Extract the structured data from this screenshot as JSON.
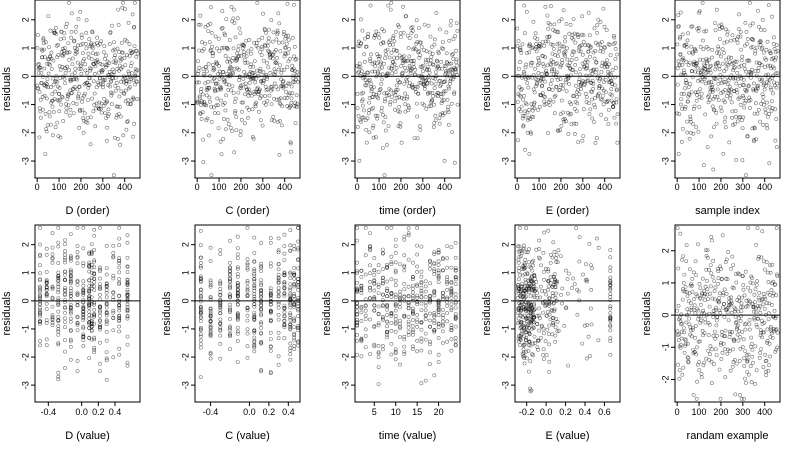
{
  "chart_data": [
    {
      "type": "scatter",
      "xlabel": "D (order)",
      "ylabel": "residuals",
      "xlim": [
        -10,
        470
      ],
      "ylim": [
        -3.6,
        2.7
      ],
      "xticks": [
        0,
        100,
        200,
        300,
        400
      ],
      "xticklabels": [
        "0",
        "100",
        "200",
        "300",
        "400"
      ],
      "yticks": [
        -3,
        -2,
        -1,
        0,
        1,
        2
      ],
      "yticklabels": [
        "-3",
        "-2",
        "-1",
        "0",
        "1",
        "2"
      ],
      "n": 460,
      "x_kind": "index",
      "reference_line": 0,
      "grid": false
    },
    {
      "type": "scatter",
      "xlabel": "C (order)",
      "ylabel": "residuals",
      "xlim": [
        -10,
        470
      ],
      "ylim": [
        -3.6,
        2.7
      ],
      "xticks": [
        0,
        100,
        200,
        300,
        400
      ],
      "xticklabels": [
        "0",
        "100",
        "200",
        "300",
        "400"
      ],
      "yticks": [
        -3,
        -2,
        -1,
        0,
        1,
        2
      ],
      "yticklabels": [
        "-3",
        "-2",
        "-1",
        "0",
        "1",
        "2"
      ],
      "n": 460,
      "x_kind": "index",
      "reference_line": 0,
      "grid": false
    },
    {
      "type": "scatter",
      "xlabel": "time (order)",
      "ylabel": "residuals",
      "xlim": [
        -10,
        470
      ],
      "ylim": [
        -3.6,
        2.7
      ],
      "xticks": [
        0,
        100,
        200,
        300,
        400
      ],
      "xticklabels": [
        "0",
        "100",
        "200",
        "300",
        "400"
      ],
      "yticks": [
        -3,
        -2,
        -1,
        0,
        1,
        2
      ],
      "yticklabels": [
        "-3",
        "-2",
        "-1",
        "0",
        "1",
        "2"
      ],
      "n": 460,
      "x_kind": "index",
      "reference_line": 0,
      "grid": false
    },
    {
      "type": "scatter",
      "xlabel": "E (order)",
      "ylabel": "residuals",
      "xlim": [
        -10,
        470
      ],
      "ylim": [
        -3.6,
        2.7
      ],
      "xticks": [
        0,
        100,
        200,
        300,
        400
      ],
      "xticklabels": [
        "0",
        "100",
        "200",
        "300",
        "400"
      ],
      "yticks": [
        -3,
        -2,
        -1,
        0,
        1,
        2
      ],
      "yticklabels": [
        "-3",
        "-2",
        "-1",
        "0",
        "1",
        "2"
      ],
      "n": 460,
      "x_kind": "index",
      "reference_line": 0,
      "grid": false
    },
    {
      "type": "scatter",
      "xlabel": "sample index",
      "ylabel": "residuals",
      "xlim": [
        -10,
        470
      ],
      "ylim": [
        -3.6,
        2.7
      ],
      "xticks": [
        0,
        100,
        200,
        300,
        400
      ],
      "xticklabels": [
        "0",
        "100",
        "200",
        "300",
        "400"
      ],
      "yticks": [
        -3,
        -2,
        -1,
        0,
        1,
        2
      ],
      "yticklabels": [
        "-3",
        "-2",
        "-1",
        "0",
        "1",
        "2"
      ],
      "n": 460,
      "x_kind": "index",
      "reference_line": 0,
      "grid": false
    },
    {
      "type": "scatter",
      "xlabel": "D (value)",
      "ylabel": "residuals",
      "xlim": [
        -0.56,
        0.7
      ],
      "ylim": [
        -3.6,
        2.7
      ],
      "xticks": [
        -0.4,
        0.0,
        0.2,
        0.4
      ],
      "xticklabels": [
        "-0.4",
        "0.0",
        "0.2",
        "0.4"
      ],
      "yticks": [
        -3,
        -2,
        -1,
        0,
        1,
        2
      ],
      "yticklabels": [
        "-3",
        "-2",
        "-1",
        "0",
        "1",
        "2"
      ],
      "n": 460,
      "x_kind": "discrete",
      "x_levels": [
        -0.5,
        -0.42,
        -0.35,
        -0.28,
        -0.2,
        -0.13,
        -0.05,
        0.02,
        0.09,
        0.12,
        0.15,
        0.22,
        0.3,
        0.38,
        0.45,
        0.55
      ],
      "reference_line": 0,
      "grid": false
    },
    {
      "type": "scatter",
      "xlabel": "C (value)",
      "ylabel": "residuals",
      "xlim": [
        -0.56,
        0.52
      ],
      "ylim": [
        -3.6,
        2.7
      ],
      "xticks": [
        -0.4,
        0.0,
        0.2,
        0.4
      ],
      "xticklabels": [
        "-0.4",
        "0.0",
        "0.2",
        "0.4"
      ],
      "yticks": [
        -3,
        -2,
        -1,
        0,
        1,
        2
      ],
      "yticklabels": [
        "-3",
        "-2",
        "-1",
        "0",
        "1",
        "2"
      ],
      "n": 460,
      "x_kind": "discrete",
      "x_levels": [
        -0.5,
        -0.4,
        -0.3,
        -0.2,
        -0.12,
        -0.02,
        0.05,
        0.12,
        0.22,
        0.3,
        0.36,
        0.42,
        0.46,
        0.5
      ],
      "reference_line": 0,
      "grid": false
    },
    {
      "type": "scatter",
      "xlabel": "time (value)",
      "ylabel": "residuals",
      "xlim": [
        0.5,
        25
      ],
      "ylim": [
        -3.6,
        2.7
      ],
      "xticks": [
        5,
        10,
        15,
        20
      ],
      "xticklabels": [
        "5",
        "10",
        "15",
        "20"
      ],
      "yticks": [
        -3,
        -2,
        -1,
        0,
        1,
        2
      ],
      "yticklabels": [
        "-3",
        "-2",
        "-1",
        "0",
        "1",
        "2"
      ],
      "n": 460,
      "x_kind": "discrete",
      "x_levels": [
        1,
        2,
        3,
        4,
        5,
        6,
        7,
        8,
        9,
        10,
        11,
        12,
        13,
        14,
        15,
        16,
        17,
        18,
        19,
        20,
        21,
        22,
        23,
        24
      ],
      "reference_line": 0,
      "grid": false
    },
    {
      "type": "scatter",
      "xlabel": "E (value)",
      "ylabel": "residuals",
      "xlim": [
        -0.32,
        0.76
      ],
      "ylim": [
        -3.6,
        2.7
      ],
      "xticks": [
        -0.2,
        0.0,
        0.2,
        0.4,
        0.6
      ],
      "xticklabels": [
        "-0.2",
        "0.0",
        "0.2",
        "0.4",
        "0.6"
      ],
      "yticks": [
        -3,
        -2,
        -1,
        0,
        1,
        2
      ],
      "yticklabels": [
        "-3",
        "-2",
        "-1",
        "0",
        "1",
        "2"
      ],
      "n": 460,
      "x_kind": "skewed",
      "reference_line": 0,
      "grid": false
    },
    {
      "type": "scatter",
      "xlabel": "randam example",
      "ylabel": "residuals",
      "xlim": [
        -10,
        470
      ],
      "ylim": [
        -2.7,
        2.8
      ],
      "xticks": [
        0,
        100,
        200,
        300,
        400
      ],
      "xticklabels": [
        "0",
        "100",
        "200",
        "300",
        "400"
      ],
      "yticks": [
        -2,
        -1,
        0,
        1,
        2
      ],
      "yticklabels": [
        "-2",
        "-1",
        "0",
        "1",
        "2"
      ],
      "n": 460,
      "x_kind": "index",
      "reference_line": 0,
      "grid": false
    }
  ]
}
